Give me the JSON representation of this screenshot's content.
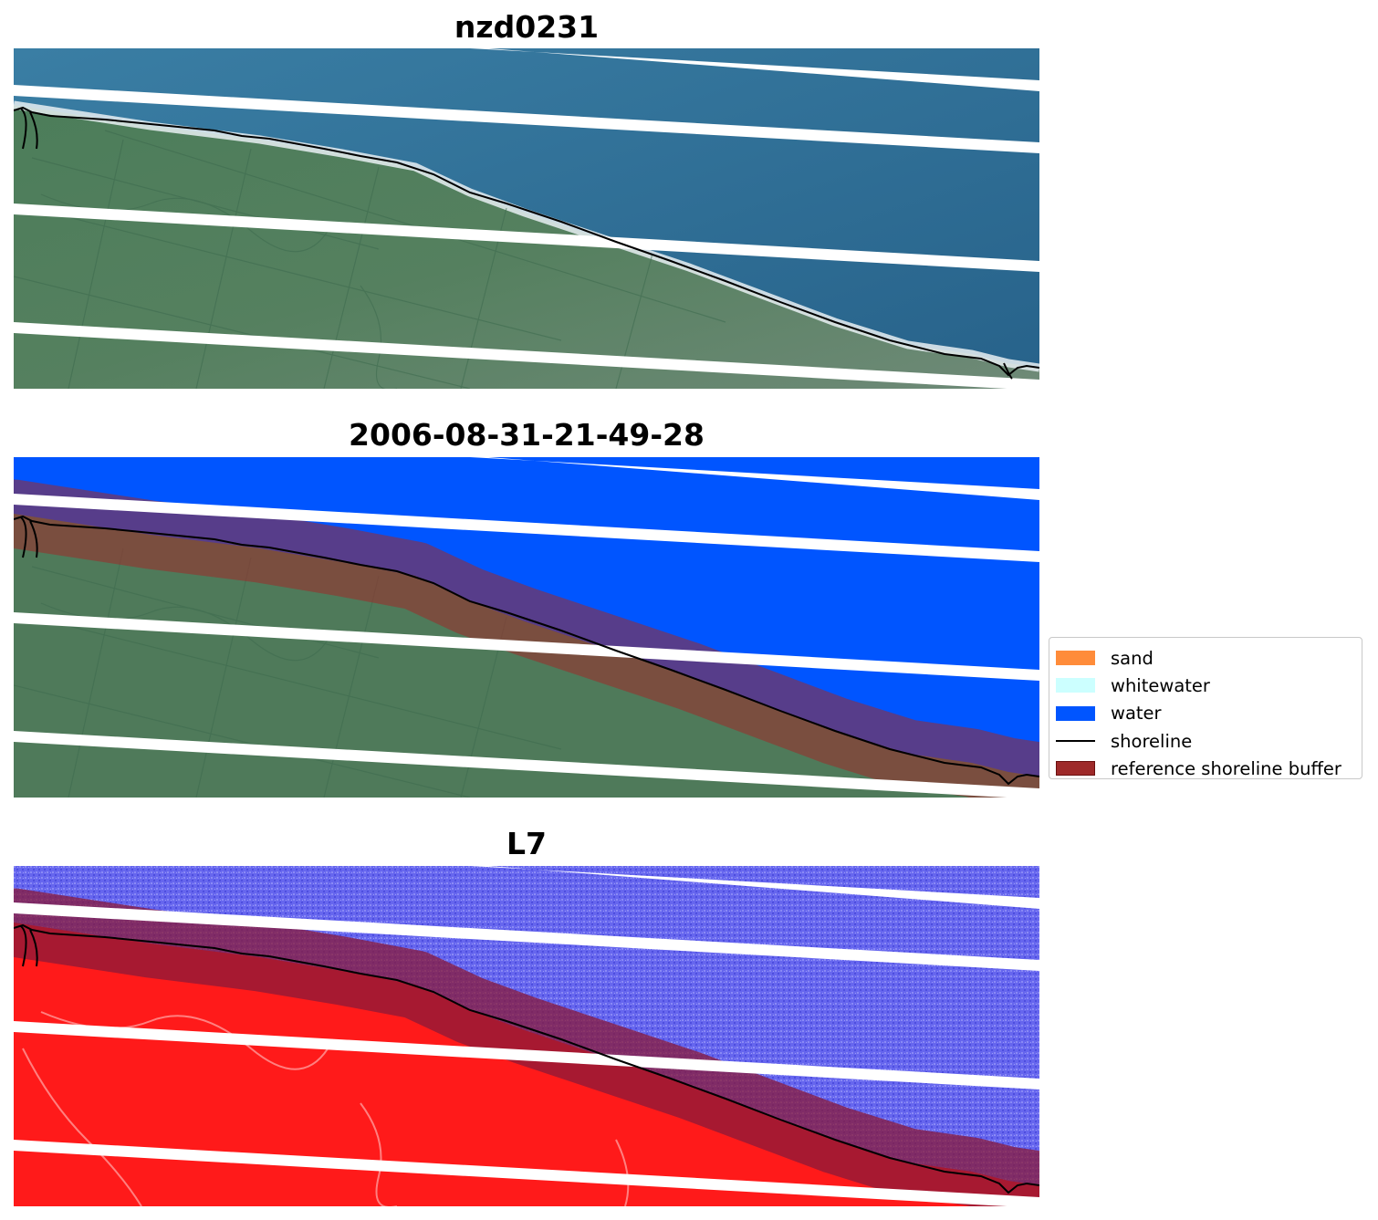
{
  "titles": {
    "top": "nzd0231",
    "middle": "2006-08-31-21-49-28",
    "bottom": "L7"
  },
  "legend": {
    "items": [
      {
        "label": "sand",
        "color": "#ff8c3a",
        "kind": "patch"
      },
      {
        "label": "whitewater",
        "color": "#ccffff",
        "kind": "patch"
      },
      {
        "label": "water",
        "color": "#0055ff",
        "kind": "patch"
      },
      {
        "label": "shoreline",
        "color": "#000000",
        "kind": "line"
      },
      {
        "label": "reference shoreline buffer",
        "color": "#9e2a2a",
        "kind": "patch"
      }
    ]
  },
  "colors": {
    "sea_rgb": "#2f6f93",
    "land_rgb": "#4f7a5a",
    "water_class": "#0055ff",
    "buffer": "#9e2a2a",
    "land_prob": "#ff1a1a",
    "water_prob": "#6868f0",
    "shoreline": "#000000",
    "nodata_stripe": "#ffffff"
  }
}
